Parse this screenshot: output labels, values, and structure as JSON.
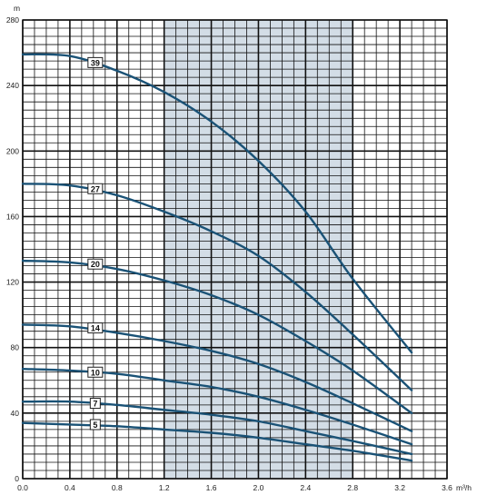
{
  "chart_data": {
    "type": "line",
    "title": "",
    "xlabel": "m³/h",
    "ylabel": "m",
    "xlim": [
      0,
      3.6
    ],
    "ylim": [
      0,
      280
    ],
    "xticks": [
      "0.0",
      "0.4",
      "0.8",
      "1.2",
      "1.6",
      "2.0",
      "2.4",
      "2.8",
      "3.2",
      "3.6"
    ],
    "yticks": [
      "0",
      "40",
      "80",
      "120",
      "160",
      "200",
      "240",
      "280"
    ],
    "grid": true,
    "highlight_band": {
      "x_from": 1.2,
      "x_to": 2.8,
      "color": "#d3dde6"
    },
    "line_color": "#1a5276",
    "series": [
      {
        "name": "39",
        "label_x": 0.6,
        "label_y": 254,
        "points": [
          [
            0.0,
            259
          ],
          [
            0.4,
            258
          ],
          [
            0.8,
            249
          ],
          [
            1.2,
            236
          ],
          [
            1.6,
            218
          ],
          [
            2.0,
            194
          ],
          [
            2.4,
            163
          ],
          [
            2.8,
            122
          ],
          [
            3.3,
            77
          ]
        ]
      },
      {
        "name": "27",
        "label_x": 0.6,
        "label_y": 177,
        "points": [
          [
            0.0,
            180
          ],
          [
            0.4,
            179
          ],
          [
            0.8,
            173
          ],
          [
            1.2,
            163
          ],
          [
            1.6,
            151
          ],
          [
            2.0,
            136
          ],
          [
            2.4,
            114
          ],
          [
            2.8,
            88
          ],
          [
            3.3,
            54
          ]
        ]
      },
      {
        "name": "20",
        "label_x": 0.6,
        "label_y": 131,
        "points": [
          [
            0.0,
            133
          ],
          [
            0.4,
            132
          ],
          [
            0.8,
            128
          ],
          [
            1.2,
            121
          ],
          [
            1.6,
            112
          ],
          [
            2.0,
            100
          ],
          [
            2.4,
            84
          ],
          [
            2.8,
            66
          ],
          [
            3.3,
            40
          ]
        ]
      },
      {
        "name": "14",
        "label_x": 0.6,
        "label_y": 92,
        "points": [
          [
            0.0,
            94
          ],
          [
            0.4,
            93
          ],
          [
            0.8,
            89
          ],
          [
            1.2,
            84
          ],
          [
            1.6,
            78
          ],
          [
            2.0,
            70
          ],
          [
            2.4,
            59
          ],
          [
            2.8,
            46
          ],
          [
            3.3,
            29
          ]
        ]
      },
      {
        "name": "10",
        "label_x": 0.6,
        "label_y": 65,
        "points": [
          [
            0.0,
            67
          ],
          [
            0.4,
            66
          ],
          [
            0.8,
            64
          ],
          [
            1.2,
            60
          ],
          [
            1.6,
            56
          ],
          [
            2.0,
            50
          ],
          [
            2.4,
            42
          ],
          [
            2.8,
            33
          ],
          [
            3.3,
            21
          ]
        ]
      },
      {
        "name": "7",
        "label_x": 0.6,
        "label_y": 46,
        "points": [
          [
            0.0,
            47
          ],
          [
            0.4,
            47
          ],
          [
            0.8,
            45
          ],
          [
            1.2,
            42
          ],
          [
            1.6,
            39
          ],
          [
            2.0,
            35
          ],
          [
            2.4,
            29
          ],
          [
            2.8,
            23
          ],
          [
            3.3,
            15
          ]
        ]
      },
      {
        "name": "5",
        "label_x": 0.6,
        "label_y": 33,
        "points": [
          [
            0.0,
            34
          ],
          [
            0.4,
            33
          ],
          [
            0.8,
            32
          ],
          [
            1.2,
            30
          ],
          [
            1.6,
            28
          ],
          [
            2.0,
            25
          ],
          [
            2.4,
            21
          ],
          [
            2.8,
            17
          ],
          [
            3.3,
            11
          ]
        ]
      }
    ]
  }
}
